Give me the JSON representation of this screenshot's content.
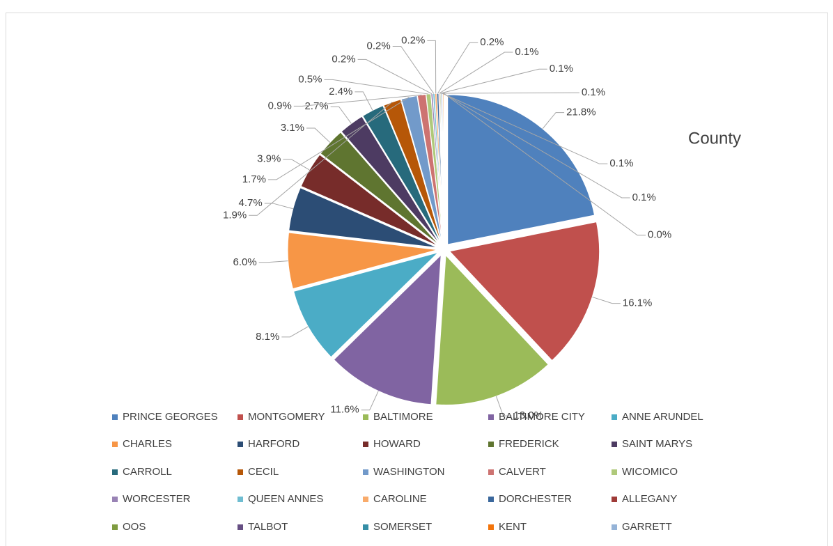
{
  "chart_data": {
    "type": "pie",
    "legend_title": "County",
    "legend": "bottom",
    "categories": [
      "PRINCE GEORGES",
      "MONTGOMERY",
      "BALTIMORE",
      "BALTIMORE CITY",
      "ANNE ARUNDEL",
      "CHARLES",
      "HARFORD",
      "HOWARD",
      "FREDERICK",
      "SAINT MARYS",
      "CARROLL",
      "CECIL",
      "WASHINGTON",
      "CALVERT",
      "WICOMICO",
      "WORCESTER",
      "QUEEN ANNES",
      "CAROLINE",
      "DORCHESTER",
      "ALLEGANY",
      "OOS",
      "TALBOT",
      "SOMERSET",
      "KENT",
      "GARRETT"
    ],
    "values": [
      21.8,
      16.1,
      13.0,
      11.6,
      8.1,
      6.0,
      4.7,
      3.9,
      3.1,
      2.7,
      2.4,
      1.9,
      1.7,
      0.9,
      0.5,
      0.2,
      0.2,
      0.2,
      0.2,
      0.1,
      0.1,
      0.1,
      0.1,
      0.1,
      0.0
    ],
    "value_labels": [
      "21.8%",
      "16.1%",
      "13.0%",
      "11.6%",
      "8.1%",
      "6.0%",
      "4.7%",
      "3.9%",
      "3.1%",
      "2.7%",
      "2.4%",
      "1.9%",
      "1.7%",
      "0.9%",
      "0.5%",
      "0.2%",
      "0.2%",
      "0.2%",
      "0.2%",
      "0.1%",
      "0.1%",
      "0.1%",
      "0.1%",
      "0.1%",
      "0.0%"
    ],
    "colors": [
      "#4f81bd",
      "#c0504d",
      "#9bbb59",
      "#8064a2",
      "#4bacc6",
      "#f79646",
      "#2c4d75",
      "#772c2a",
      "#5f7530",
      "#4d3b62",
      "#276a7c",
      "#b65708",
      "#729aca",
      "#cd7371",
      "#afc97a",
      "#9983b5",
      "#6fbdd1",
      "#f9ab6b",
      "#3a679c",
      "#9f3b38",
      "#7f9c40",
      "#664f83",
      "#358ea6",
      "#f3740b",
      "#95b3d7"
    ]
  }
}
